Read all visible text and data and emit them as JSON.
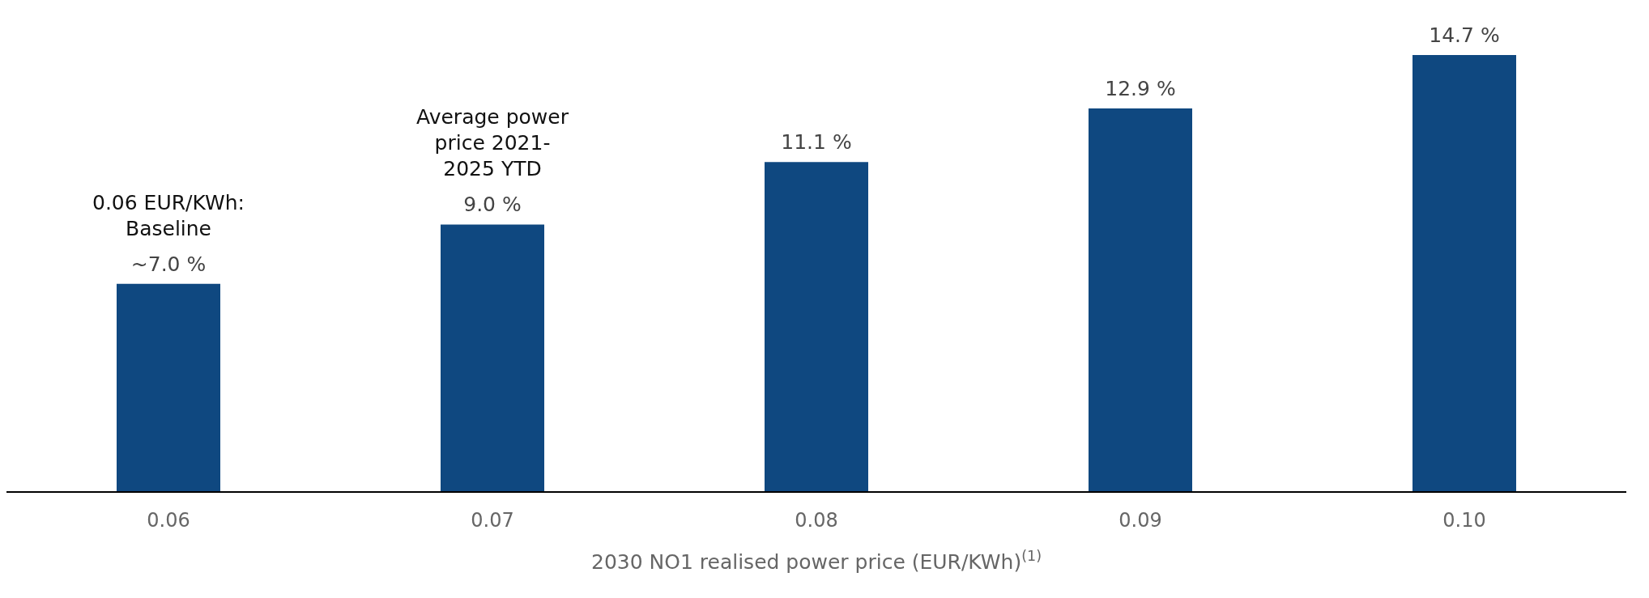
{
  "chart_data": {
    "type": "bar",
    "xlabel": "2030 NO1 realised power price (EUR/KWh)$^{(1)}$",
    "categories": [
      "0.06",
      "0.07",
      "0.08",
      "0.09",
      "0.10"
    ],
    "values": [
      7.0,
      9.0,
      11.1,
      12.9,
      14.7
    ],
    "value_labels": [
      "~7.0 %",
      "9.0 %",
      "11.1 %",
      "12.9 %",
      "14.7 %"
    ],
    "color": "#0f4880",
    "annotations": [
      {
        "text": "0.06 EUR/KWh: Baseline",
        "x": "0.06",
        "y": 7.0
      },
      {
        "text": "Average power price 2021-2025 YTD",
        "x": "0.07",
        "y": 9.0
      }
    ],
    "grid": false,
    "legend": false
  }
}
